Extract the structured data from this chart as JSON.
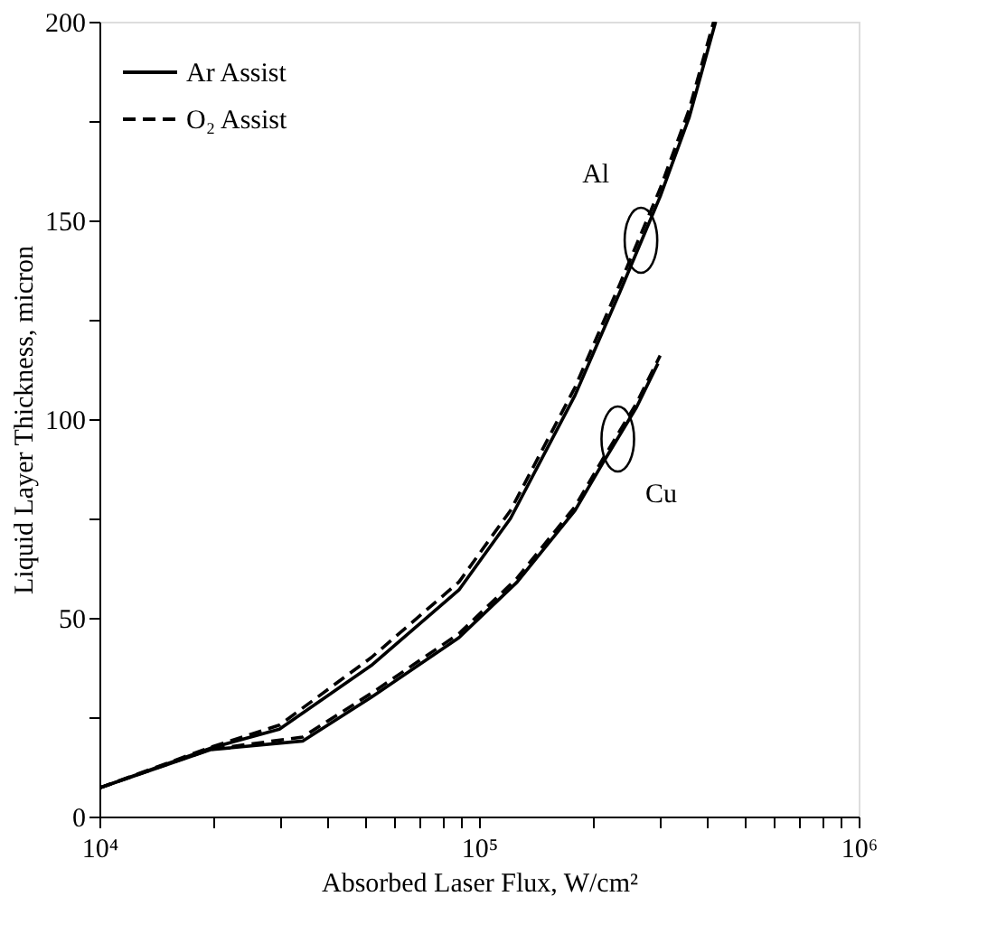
{
  "chart_data": {
    "type": "line",
    "xlabel": "Absorbed Laser Flux, W/cm²",
    "ylabel": "Liquid Layer Thickness, micron",
    "log": "x",
    "grid": false,
    "legend": "top left",
    "xlim": [
      10000,
      1000000
    ],
    "ylim": [
      0,
      200
    ],
    "xticks": [
      {
        "value": 10000,
        "label": "10⁴"
      },
      {
        "value": 20000,
        "label": null
      },
      {
        "value": 30000,
        "label": null
      },
      {
        "value": 40000,
        "label": null
      },
      {
        "value": 50000,
        "label": null
      },
      {
        "value": 60000,
        "label": null
      },
      {
        "value": 70000,
        "label": null
      },
      {
        "value": 80000,
        "label": null
      },
      {
        "value": 90000,
        "label": null
      },
      {
        "value": 100000,
        "label": "10⁵"
      },
      {
        "value": 200000,
        "label": null
      },
      {
        "value": 300000,
        "label": null
      },
      {
        "value": 400000,
        "label": null
      },
      {
        "value": 500000,
        "label": null
      },
      {
        "value": 600000,
        "label": null
      },
      {
        "value": 700000,
        "label": null
      },
      {
        "value": 800000,
        "label": null
      },
      {
        "value": 900000,
        "label": null
      },
      {
        "value": 1000000,
        "label": "10⁶"
      }
    ],
    "yticks": [
      0,
      {
        "value": 25,
        "label": null
      },
      50,
      {
        "value": 75,
        "label": null
      },
      100,
      {
        "value": 125,
        "label": null
      },
      150,
      {
        "value": 175,
        "label": null
      },
      200
    ],
    "series": [
      {
        "name": "Ar Assist",
        "color": "#000000",
        "line_style": "solid",
        "x": [
          10000,
          19600,
          29800,
          52000,
          88500,
          121000,
          179000,
          235000,
          300000,
          358000,
          420000
        ],
        "values": [
          7.2,
          17.2,
          22,
          38,
          57,
          75,
          106,
          132,
          156,
          176,
          200
        ]
      },
      {
        "name": "O₂ Assist",
        "color": "#000000",
        "line_style": "dashed",
        "x": [
          10000,
          19600,
          29800,
          52000,
          88500,
          121000,
          179000,
          235000,
          300000,
          358000,
          415000
        ],
        "values": [
          7.2,
          17.4,
          23,
          40,
          59,
          77,
          108,
          134,
          158,
          178,
          200
        ]
      },
      {
        "color": "#000000",
        "line_style": "solid",
        "x": [
          10000,
          19600,
          34300,
          52000,
          88500,
          126000,
          179000,
          212000,
          260000,
          296000
        ],
        "values": [
          7.2,
          16.8,
          19,
          30,
          45,
          59,
          77,
          89,
          103,
          114
        ]
      },
      {
        "color": "#000000",
        "line_style": "dashed",
        "x": [
          10000,
          19600,
          34300,
          52000,
          88500,
          126000,
          179000,
          212000,
          260000,
          300000
        ],
        "values": [
          7.2,
          16.9,
          20,
          31,
          46,
          60,
          78,
          90,
          104,
          116
        ]
      }
    ],
    "annotations": [
      {
        "text": "Al",
        "x": 267000,
        "y": 145
      },
      {
        "text": "Cu",
        "x": 232000,
        "y": 95
      }
    ]
  }
}
